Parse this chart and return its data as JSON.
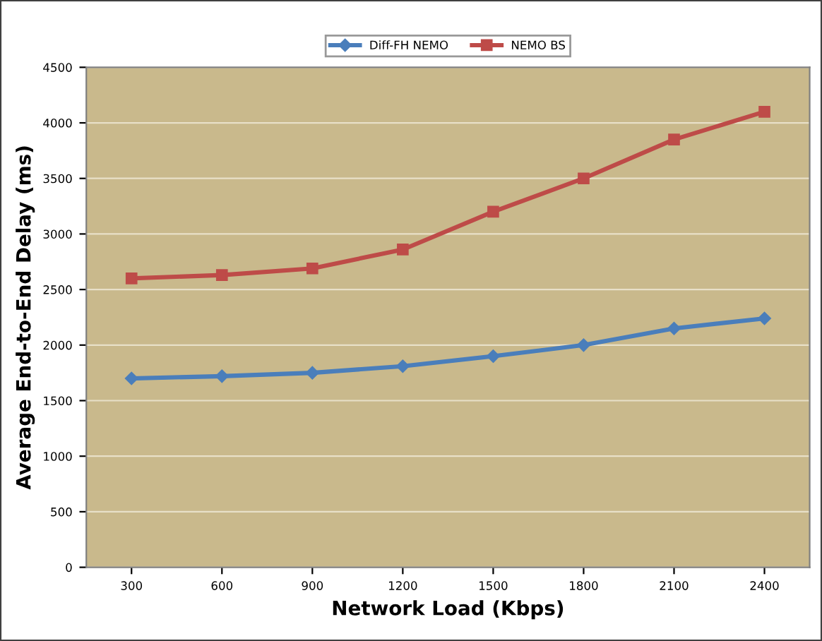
{
  "chart_data": {
    "type": "line",
    "xlabel": "Network Load (Kbps)",
    "ylabel": "Average End-to-End Delay (ms)",
    "categories": [
      "300",
      "600",
      "900",
      "1200",
      "1500",
      "1800",
      "2100",
      "2400"
    ],
    "series": [
      {
        "name": "Diff-FH NEMO",
        "color": "#4a7ebb",
        "marker": "diamond",
        "values": [
          1700,
          1720,
          1750,
          1810,
          1900,
          2000,
          2150,
          2240
        ]
      },
      {
        "name": "NEMO BS",
        "color": "#be4b48",
        "marker": "square",
        "values": [
          2600,
          2630,
          2690,
          2860,
          3200,
          3500,
          3850,
          4100
        ]
      }
    ],
    "ylim": [
      0,
      4500
    ],
    "yticks": [
      0,
      500,
      1000,
      1500,
      2000,
      2500,
      3000,
      3500,
      4000,
      4500
    ],
    "grid": "y",
    "legend": "top"
  }
}
